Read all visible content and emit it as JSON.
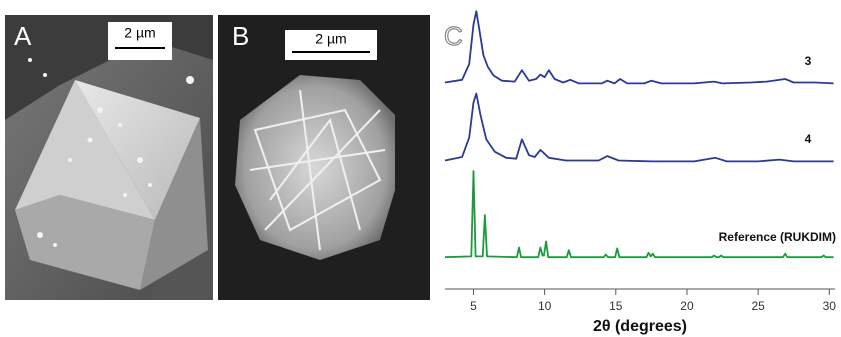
{
  "panels": {
    "a": {
      "label": "A",
      "scale_bar": "2 µm"
    },
    "b": {
      "label": "B",
      "scale_bar": "2 µm"
    }
  },
  "chart_data": {
    "type": "line",
    "label": "C",
    "xlabel": "2θ (degrees)",
    "xlim": [
      3,
      30.4
    ],
    "xticks": [
      5,
      10,
      15,
      20,
      25,
      30
    ],
    "ylim": [
      0,
      100
    ],
    "series": [
      {
        "name": "3",
        "color": "#2b3a94",
        "x": [
          3.0,
          4.2,
          4.7,
          5.0,
          5.2,
          5.4,
          5.7,
          6.0,
          6.4,
          7.0,
          7.9,
          8.4,
          8.9,
          9.4,
          9.7,
          10.0,
          10.3,
          10.7,
          11.3,
          11.8,
          12.4,
          14.0,
          14.4,
          14.9,
          15.3,
          15.8,
          17.0,
          17.5,
          18.2,
          20.5,
          21.9,
          22.5,
          24.5,
          25.6,
          26.9,
          27.5,
          29.0,
          30.3
        ],
        "values": [
          4,
          7,
          25,
          70,
          85,
          65,
          35,
          22,
          12,
          6,
          5,
          18,
          6,
          8,
          13,
          10,
          18,
          8,
          4,
          7,
          3,
          3,
          6,
          3,
          8,
          3,
          3,
          6,
          3,
          3,
          5,
          3,
          4,
          5,
          8,
          4,
          4,
          3
        ]
      },
      {
        "name": "4",
        "color": "#2b3a94",
        "x": [
          3.0,
          4.2,
          4.7,
          5.0,
          5.2,
          5.5,
          5.9,
          6.5,
          7.3,
          8.0,
          8.4,
          8.9,
          9.3,
          9.7,
          10.3,
          11.5,
          13.8,
          14.4,
          15.2,
          17.5,
          20.5,
          22.0,
          22.8,
          25.0,
          26.5,
          27.5,
          30.3
        ],
        "values": [
          4,
          8,
          30,
          70,
          80,
          55,
          28,
          14,
          7,
          6,
          28,
          10,
          8,
          16,
          7,
          4,
          4,
          9,
          4,
          3,
          3,
          7,
          3,
          3,
          5,
          3,
          3
        ]
      },
      {
        "name": "Reference (RUKDIM)",
        "color": "#1e9a3e",
        "x": [
          3.0,
          4.85,
          5.0,
          5.15,
          5.65,
          5.8,
          5.95,
          8.05,
          8.2,
          8.35,
          9.55,
          9.7,
          9.85,
          9.95,
          10.1,
          10.25,
          11.55,
          11.7,
          11.85,
          14.15,
          14.3,
          14.45,
          14.95,
          15.1,
          15.25,
          17.15,
          17.3,
          17.45,
          17.6,
          17.75,
          21.75,
          21.9,
          22.05,
          22.25,
          22.4,
          22.55,
          26.75,
          26.9,
          27.05,
          29.45,
          29.6,
          29.75,
          30.3
        ],
        "values": [
          2,
          3,
          100,
          3,
          3,
          50,
          3,
          2,
          13,
          2,
          2,
          13,
          4,
          4,
          20,
          2,
          2,
          10,
          2,
          2,
          5,
          2,
          2,
          12,
          2,
          2,
          7,
          3,
          6,
          2,
          2,
          4,
          2,
          2,
          4,
          2,
          2,
          6,
          2,
          2,
          4,
          2,
          2
        ]
      }
    ]
  }
}
